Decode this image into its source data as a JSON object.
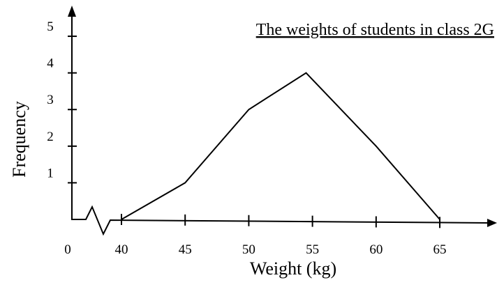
{
  "chart_data": {
    "type": "line",
    "title": "The weights of students in class 2G",
    "xlabel": "Weight (kg)",
    "ylabel": "Frequency",
    "origin_tick": "0",
    "x": [
      40,
      45,
      50,
      54.5,
      60,
      65
    ],
    "series": [
      {
        "name": "Frequency",
        "color": "#000000",
        "values": [
          0,
          1,
          3,
          4,
          2,
          0
        ]
      }
    ],
    "xlim": [
      40,
      69
    ],
    "xticks": [
      40,
      45,
      50,
      55,
      60,
      65
    ],
    "ylim": [
      0,
      5.8
    ],
    "yticks": [
      1,
      2,
      3,
      4,
      5
    ]
  }
}
